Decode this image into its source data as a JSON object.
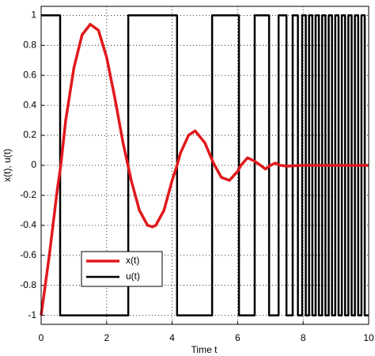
{
  "chart_data": {
    "type": "line",
    "xlabel": "Time t",
    "ylabel": "x(t), u(t)",
    "xlim": [
      0,
      10
    ],
    "ylim": [
      -1.06,
      1.06
    ],
    "xticks": [
      0,
      2,
      4,
      6,
      8,
      10
    ],
    "yticks": [
      -1,
      -0.8,
      -0.6,
      -0.4,
      -0.2,
      0,
      0.2,
      0.4,
      0.6,
      0.8,
      1
    ],
    "grid": true,
    "legend": "lower left",
    "series": [
      {
        "name": "x(t)",
        "color": "#e0191c",
        "x": [
          0,
          0.25,
          0.5,
          0.6,
          0.75,
          1.0,
          1.25,
          1.5,
          1.75,
          2.0,
          2.25,
          2.5,
          2.65,
          2.75,
          3.0,
          3.25,
          3.4,
          3.5,
          3.75,
          4.0,
          4.15,
          4.25,
          4.5,
          4.7,
          5.0,
          5.25,
          5.3,
          5.5,
          5.75,
          6.0,
          6.1,
          6.3,
          6.5,
          6.7,
          6.85,
          7.0,
          7.15,
          7.3,
          7.5,
          8.0,
          10.0
        ],
        "values": [
          -1,
          -0.6,
          -0.15,
          0,
          0.3,
          0.65,
          0.87,
          0.94,
          0.9,
          0.72,
          0.45,
          0.15,
          0,
          -0.1,
          -0.3,
          -0.4,
          -0.41,
          -0.4,
          -0.3,
          -0.1,
          0,
          0.08,
          0.2,
          0.23,
          0.15,
          0.02,
          0,
          -0.08,
          -0.1,
          -0.04,
          0,
          0.05,
          0.03,
          0,
          -0.025,
          0,
          0.015,
          0,
          -0.005,
          0,
          0
        ]
      },
      {
        "name": "u(t)",
        "color": "#000000",
        "x": [
          0,
          0.58,
          0.58,
          2.66,
          2.66,
          4.15,
          4.15,
          5.22,
          5.22,
          6.04,
          6.04,
          6.52,
          6.52,
          6.96,
          6.96,
          7.25,
          7.25,
          7.49,
          7.49,
          7.68,
          7.68,
          7.84,
          7.84,
          7.97,
          7.97,
          8.08,
          8.08,
          8.18,
          8.18,
          8.28,
          8.28,
          8.38,
          8.38,
          8.48,
          8.48,
          8.58,
          8.58,
          8.68,
          8.68,
          8.78,
          8.78,
          8.88,
          8.88,
          8.98,
          8.98,
          9.08,
          9.08,
          9.18,
          9.18,
          9.28,
          9.28,
          9.38,
          9.38,
          9.48,
          9.48,
          9.58,
          9.58,
          9.68,
          9.68,
          9.78,
          9.78,
          9.88,
          9.88,
          10
        ],
        "values": [
          1,
          1,
          -1,
          -1,
          1,
          1,
          -1,
          -1,
          1,
          1,
          -1,
          -1,
          1,
          1,
          -1,
          -1,
          1,
          1,
          -1,
          -1,
          1,
          1,
          -1,
          -1,
          1,
          1,
          -1,
          -1,
          1,
          1,
          -1,
          -1,
          1,
          1,
          -1,
          -1,
          1,
          1,
          -1,
          -1,
          1,
          1,
          -1,
          -1,
          1,
          1,
          -1,
          -1,
          1,
          1,
          -1,
          -1,
          1,
          1,
          -1,
          -1,
          1,
          1,
          -1,
          -1,
          1,
          1,
          -1,
          -1
        ]
      }
    ]
  }
}
